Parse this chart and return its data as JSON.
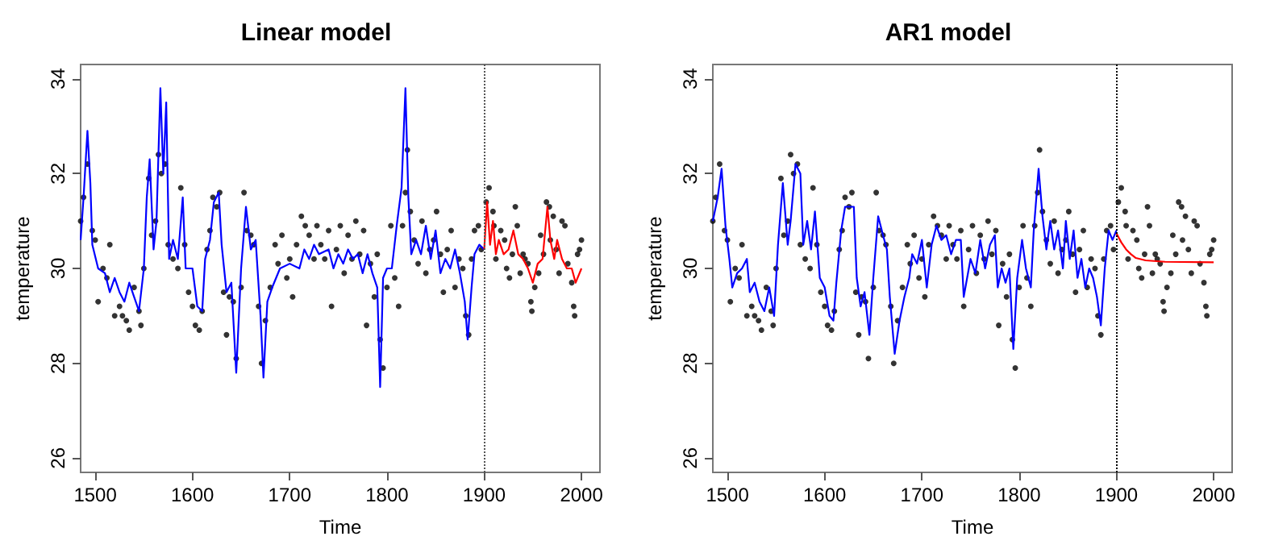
{
  "chart_data": [
    {
      "type": "line",
      "title": "Linear model",
      "xlabel": "Time",
      "ylabel": "temperature",
      "xlim": [
        1485,
        2019
      ],
      "xticks": [
        1500,
        1600,
        1700,
        1800,
        1900,
        2000
      ],
      "ylim": [
        25.7,
        34.3
      ],
      "yticks": [
        26,
        28,
        30,
        32,
        34
      ],
      "grid": false,
      "ref_lines": [
        {
          "axis": "x",
          "value": 1900,
          "color": "#555555",
          "line_style": "dotted"
        }
      ],
      "series": [
        {
          "type": "scatter",
          "marker": "circle",
          "color": "#000000",
          "x": [
            1485,
            1488,
            1492,
            1497,
            1500,
            1503,
            1508,
            1512,
            1515,
            1520,
            1525,
            1528,
            1532,
            1535,
            1540,
            1545,
            1547,
            1550,
            1555,
            1558,
            1562,
            1565,
            1568,
            1572,
            1575,
            1580,
            1585,
            1588,
            1592,
            1596,
            1600,
            1603,
            1607,
            1610,
            1615,
            1618,
            1621,
            1625,
            1628,
            1632,
            1635,
            1638,
            1642,
            1645,
            1650,
            1653,
            1656,
            1660,
            1663,
            1668,
            1671,
            1675,
            1680,
            1685,
            1688,
            1692,
            1697,
            1700,
            1703,
            1707,
            1712,
            1716,
            1720,
            1725,
            1728,
            1732,
            1736,
            1740,
            1743,
            1748,
            1752,
            1756,
            1760,
            1764,
            1768,
            1772,
            1776,
            1779,
            1783,
            1787,
            1790,
            1793,
            1796,
            1800,
            1804,
            1808,
            1812,
            1816,
            1819,
            1821,
            1824,
            1828,
            1832,
            1836,
            1840,
            1844,
            1848,
            1851,
            1855,
            1858,
            1862,
            1866,
            1870,
            1874,
            1878,
            1881,
            1884,
            1887,
            1890,
            1894,
            1897,
            1902,
            1905,
            1909,
            1910,
            1912,
            1917,
            1921,
            1923,
            1926,
            1929,
            1932,
            1934,
            1937,
            1940,
            1942,
            1945,
            1948,
            1949,
            1952,
            1956,
            1958,
            1961,
            1964,
            1967,
            1968,
            1971,
            1974,
            1977,
            1980,
            1983,
            1986,
            1990,
            1992,
            1993,
            1996,
            1998,
            2000
          ],
          "values": [
            31.0,
            31.5,
            32.2,
            30.8,
            30.6,
            29.3,
            30.0,
            29.8,
            30.5,
            29.0,
            29.2,
            29.0,
            28.9,
            28.7,
            29.6,
            29.1,
            28.8,
            30.0,
            31.9,
            30.7,
            31.0,
            32.4,
            32.0,
            32.2,
            30.5,
            30.2,
            30.0,
            31.7,
            30.5,
            29.5,
            29.2,
            28.8,
            28.7,
            29.1,
            30.4,
            30.8,
            31.5,
            31.3,
            31.6,
            29.5,
            28.6,
            29.4,
            29.3,
            28.1,
            29.6,
            31.6,
            30.8,
            30.7,
            30.5,
            29.2,
            28.0,
            28.9,
            29.6,
            30.5,
            30.1,
            30.7,
            29.8,
            30.2,
            29.4,
            30.5,
            31.1,
            30.9,
            30.7,
            30.2,
            30.9,
            30.5,
            30.2,
            30.8,
            29.2,
            30.4,
            30.9,
            29.9,
            30.7,
            30.2,
            31.0,
            30.3,
            30.8,
            28.8,
            30.1,
            29.4,
            30.3,
            28.5,
            27.9,
            29.6,
            30.9,
            29.8,
            29.2,
            30.9,
            31.6,
            32.5,
            31.2,
            30.6,
            30.1,
            31.0,
            29.9,
            30.4,
            30.6,
            31.2,
            30.3,
            29.5,
            30.4,
            30.8,
            29.6,
            30.2,
            30.0,
            29.0,
            28.6,
            30.2,
            30.8,
            30.9,
            30.4,
            31.4,
            31.7,
            31.2,
            30.9,
            30.2,
            30.8,
            30.6,
            30.0,
            29.8,
            30.3,
            31.3,
            30.9,
            29.9,
            30.3,
            30.2,
            30.1,
            29.3,
            29.1,
            29.6,
            29.9,
            30.7,
            30.3,
            31.4,
            31.3,
            30.6,
            31.1,
            30.4,
            29.9,
            31.0,
            30.9,
            30.1,
            29.7,
            29.2,
            29.0,
            30.3,
            30.4,
            30.6
          ]
        },
        {
          "color": "#0000ff",
          "x": [
            1485,
            1488,
            1492,
            1495,
            1497,
            1503,
            1510,
            1515,
            1520,
            1525,
            1530,
            1535,
            1540,
            1545,
            1550,
            1553,
            1556,
            1560,
            1563,
            1567,
            1570,
            1573,
            1576,
            1580,
            1585,
            1590,
            1593,
            1600,
            1605,
            1610,
            1613,
            1618,
            1622,
            1627,
            1630,
            1635,
            1640,
            1645,
            1650,
            1655,
            1660,
            1665,
            1670,
            1673,
            1677,
            1682,
            1690,
            1700,
            1710,
            1715,
            1720,
            1725,
            1730,
            1740,
            1745,
            1750,
            1755,
            1760,
            1765,
            1770,
            1775,
            1780,
            1785,
            1790,
            1793,
            1796,
            1800,
            1805,
            1810,
            1815,
            1819,
            1822,
            1825,
            1830,
            1835,
            1840,
            1845,
            1850,
            1855,
            1860,
            1865,
            1870,
            1875,
            1880,
            1883,
            1887,
            1890,
            1895,
            1900
          ],
          "values": [
            30.6,
            31.5,
            32.9,
            31.8,
            30.5,
            30.0,
            29.9,
            29.5,
            29.8,
            29.5,
            29.3,
            29.7,
            29.4,
            29.1,
            30.0,
            31.5,
            32.3,
            30.4,
            31.0,
            33.8,
            32.0,
            33.5,
            30.2,
            30.6,
            30.2,
            31.5,
            30.0,
            30.0,
            29.2,
            29.1,
            30.2,
            30.6,
            31.4,
            31.6,
            30.5,
            29.5,
            29.7,
            27.8,
            30.0,
            31.3,
            30.4,
            30.6,
            29.0,
            27.7,
            29.3,
            29.6,
            30.0,
            30.1,
            30.0,
            30.4,
            30.2,
            30.5,
            30.3,
            30.4,
            30.0,
            30.3,
            30.1,
            30.4,
            30.2,
            30.3,
            29.9,
            30.3,
            29.9,
            29.6,
            27.5,
            29.8,
            30.0,
            30.0,
            30.9,
            31.7,
            33.8,
            31.5,
            30.3,
            30.6,
            30.3,
            30.9,
            30.2,
            30.8,
            29.9,
            30.2,
            30.0,
            30.4,
            29.9,
            29.3,
            28.5,
            29.6,
            30.3,
            30.5,
            30.4
          ]
        },
        {
          "color": "#ff0000",
          "x": [
            1900,
            1903,
            1906,
            1909,
            1912,
            1915,
            1920,
            1925,
            1930,
            1935,
            1940,
            1945,
            1950,
            1955,
            1960,
            1965,
            1968,
            1972,
            1975,
            1980,
            1985,
            1990,
            1994,
            2000
          ],
          "values": [
            30.4,
            31.4,
            30.5,
            31.0,
            30.3,
            30.6,
            30.3,
            30.4,
            30.8,
            30.3,
            30.2,
            30.0,
            29.7,
            30.1,
            30.2,
            31.3,
            30.6,
            30.2,
            30.6,
            30.2,
            30.0,
            30.0,
            29.7,
            30.0
          ]
        }
      ]
    },
    {
      "type": "line",
      "title": "AR1 model",
      "xlabel": "Time",
      "ylabel": "temperature",
      "xlim": [
        1485,
        2019
      ],
      "xticks": [
        1500,
        1600,
        1700,
        1800,
        1900,
        2000
      ],
      "ylim": [
        25.7,
        34.3
      ],
      "yticks": [
        26,
        28,
        30,
        32,
        34
      ],
      "grid": false,
      "ref_lines": [
        {
          "axis": "x",
          "value": 1900,
          "color": "#000000",
          "line_style": "dotted"
        }
      ],
      "series": [
        {
          "type": "scatter",
          "marker": "circle",
          "color": "#000000",
          "x": [
            1485,
            1488,
            1492,
            1497,
            1500,
            1503,
            1508,
            1512,
            1515,
            1520,
            1525,
            1528,
            1532,
            1535,
            1540,
            1545,
            1547,
            1550,
            1555,
            1558,
            1562,
            1565,
            1568,
            1572,
            1575,
            1580,
            1585,
            1588,
            1592,
            1596,
            1600,
            1603,
            1607,
            1610,
            1615,
            1618,
            1621,
            1625,
            1628,
            1632,
            1635,
            1638,
            1642,
            1645,
            1650,
            1653,
            1656,
            1660,
            1663,
            1668,
            1671,
            1675,
            1680,
            1685,
            1688,
            1692,
            1697,
            1700,
            1703,
            1707,
            1712,
            1716,
            1720,
            1725,
            1728,
            1732,
            1736,
            1740,
            1743,
            1748,
            1752,
            1756,
            1760,
            1764,
            1768,
            1772,
            1776,
            1779,
            1783,
            1787,
            1790,
            1793,
            1796,
            1800,
            1804,
            1808,
            1812,
            1816,
            1819,
            1821,
            1824,
            1828,
            1832,
            1836,
            1840,
            1844,
            1848,
            1851,
            1855,
            1858,
            1862,
            1866,
            1870,
            1874,
            1878,
            1881,
            1884,
            1887,
            1890,
            1894,
            1897,
            1902,
            1905,
            1909,
            1910,
            1912,
            1917,
            1921,
            1923,
            1926,
            1929,
            1932,
            1934,
            1937,
            1940,
            1942,
            1945,
            1948,
            1949,
            1952,
            1956,
            1958,
            1961,
            1964,
            1967,
            1968,
            1971,
            1974,
            1977,
            1980,
            1983,
            1986,
            1990,
            1992,
            1993,
            1996,
            1998,
            2000
          ],
          "values": [
            31.0,
            31.5,
            32.2,
            30.8,
            30.6,
            29.3,
            30.0,
            29.8,
            30.5,
            29.0,
            29.2,
            29.0,
            28.9,
            28.7,
            29.6,
            29.1,
            28.8,
            30.0,
            31.9,
            30.7,
            31.0,
            32.4,
            32.0,
            32.2,
            30.5,
            30.2,
            30.0,
            31.7,
            30.5,
            29.5,
            29.2,
            28.8,
            28.7,
            29.1,
            30.4,
            30.8,
            31.5,
            31.3,
            31.6,
            29.5,
            28.6,
            29.4,
            29.3,
            28.1,
            29.6,
            31.6,
            30.8,
            30.7,
            30.5,
            29.2,
            28.0,
            28.9,
            29.6,
            30.5,
            30.1,
            30.7,
            29.8,
            30.2,
            29.4,
            30.5,
            31.1,
            30.9,
            30.7,
            30.2,
            30.9,
            30.5,
            30.2,
            30.8,
            29.2,
            30.4,
            30.9,
            29.9,
            30.7,
            30.2,
            31.0,
            30.3,
            30.8,
            28.8,
            30.1,
            29.4,
            30.3,
            28.5,
            27.9,
            29.6,
            30.9,
            29.8,
            29.2,
            30.9,
            31.6,
            32.5,
            31.2,
            30.6,
            30.1,
            31.0,
            29.9,
            30.4,
            30.6,
            31.2,
            30.3,
            29.5,
            30.4,
            30.8,
            29.6,
            30.2,
            30.0,
            29.0,
            28.6,
            30.2,
            30.8,
            30.9,
            30.4,
            31.4,
            31.7,
            31.2,
            30.9,
            30.2,
            30.8,
            30.6,
            30.0,
            29.8,
            30.3,
            31.3,
            30.9,
            29.9,
            30.3,
            30.2,
            30.1,
            29.3,
            29.1,
            29.6,
            29.9,
            30.7,
            30.3,
            31.4,
            31.3,
            30.6,
            31.1,
            30.4,
            29.9,
            31.0,
            30.9,
            30.1,
            29.7,
            29.2,
            29.0,
            30.3,
            30.4,
            30.6
          ]
        },
        {
          "color": "#0000ff",
          "x": [
            1485,
            1490,
            1494,
            1498,
            1502,
            1505,
            1510,
            1515,
            1520,
            1523,
            1528,
            1533,
            1538,
            1543,
            1548,
            1552,
            1557,
            1562,
            1565,
            1570,
            1575,
            1578,
            1582,
            1586,
            1590,
            1595,
            1600,
            1605,
            1609,
            1612,
            1617,
            1621,
            1625,
            1630,
            1633,
            1637,
            1641,
            1646,
            1650,
            1655,
            1660,
            1664,
            1667,
            1672,
            1677,
            1682,
            1687,
            1690,
            1695,
            1700,
            1705,
            1710,
            1715,
            1720,
            1725,
            1730,
            1735,
            1740,
            1743,
            1750,
            1755,
            1760,
            1765,
            1770,
            1775,
            1778,
            1782,
            1786,
            1790,
            1794,
            1798,
            1803,
            1807,
            1812,
            1815,
            1820,
            1824,
            1828,
            1832,
            1836,
            1840,
            1845,
            1848,
            1852,
            1856,
            1860,
            1864,
            1868,
            1872,
            1876,
            1880,
            1884,
            1888,
            1892,
            1896,
            1900
          ],
          "values": [
            31.0,
            31.5,
            32.1,
            30.9,
            30.2,
            29.6,
            29.9,
            30.0,
            30.2,
            29.5,
            29.7,
            29.3,
            29.1,
            29.6,
            29.0,
            30.5,
            31.8,
            30.5,
            31.0,
            32.2,
            32.0,
            30.5,
            31.0,
            30.4,
            31.2,
            29.8,
            29.6,
            29.0,
            28.9,
            29.7,
            30.8,
            31.3,
            31.3,
            31.3,
            29.8,
            29.2,
            29.5,
            28.6,
            29.8,
            31.1,
            30.7,
            30.4,
            29.4,
            28.2,
            28.9,
            29.4,
            29.8,
            30.3,
            30.1,
            30.6,
            29.6,
            30.5,
            30.9,
            30.6,
            30.7,
            30.3,
            30.6,
            30.6,
            29.4,
            30.2,
            29.9,
            30.6,
            30.0,
            30.5,
            30.7,
            29.6,
            30.0,
            29.7,
            30.0,
            28.3,
            29.8,
            30.6,
            30.0,
            29.6,
            30.8,
            32.1,
            31.1,
            30.4,
            31.0,
            30.4,
            30.8,
            30.0,
            31.0,
            30.2,
            30.8,
            29.8,
            30.2,
            29.6,
            30.0,
            29.8,
            29.4,
            28.8,
            30.0,
            30.8,
            30.6,
            30.8
          ]
        },
        {
          "color": "#ff0000",
          "x": [
            1900,
            1905,
            1910,
            1915,
            1920,
            1930,
            1950,
            2000
          ],
          "values": [
            30.74,
            30.55,
            30.4,
            30.3,
            30.22,
            30.17,
            30.14,
            30.13
          ]
        }
      ]
    }
  ]
}
